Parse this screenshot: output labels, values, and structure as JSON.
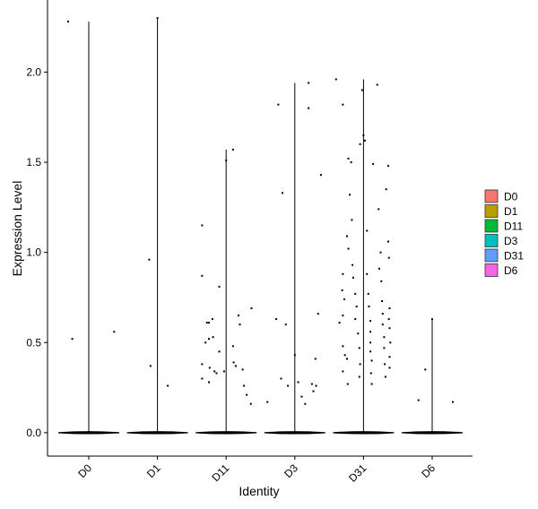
{
  "chart_data": {
    "type": "violin",
    "title": "",
    "xlabel": "Identity",
    "ylabel": "Expression Level",
    "categories": [
      "D0",
      "D1",
      "D11",
      "D3",
      "D31",
      "D6"
    ],
    "ylim": [
      -0.13,
      2.4
    ],
    "yticks": [
      0.0,
      0.5,
      1.0,
      1.5,
      2.0
    ],
    "ytick_labels": [
      "0.0",
      "0.5",
      "1.0",
      "1.5",
      "2.0"
    ],
    "grid": false,
    "legend": {
      "position": "right",
      "entries": [
        {
          "name": "D0",
          "color": "#F8766D"
        },
        {
          "name": "D1",
          "color": "#B79F00"
        },
        {
          "name": "D11",
          "color": "#00BA38"
        },
        {
          "name": "D3",
          "color": "#00BFC4"
        },
        {
          "name": "D31",
          "color": "#619CFF"
        },
        {
          "name": "D6",
          "color": "#F564E3"
        }
      ]
    },
    "series": [
      {
        "name": "D0",
        "max": 2.28,
        "points": [
          [
            -0.3,
            2.28
          ],
          [
            -0.24,
            0.52
          ],
          [
            0.37,
            0.56
          ]
        ]
      },
      {
        "name": "D1",
        "max": 2.3,
        "points": [
          [
            -0.12,
            0.96
          ],
          [
            -0.1,
            0.37
          ],
          [
            0.0,
            2.3
          ],
          [
            0.15,
            0.26
          ]
        ]
      },
      {
        "name": "D11",
        "max": 1.57,
        "points": [
          [
            -0.35,
            1.15
          ],
          [
            -0.35,
            0.87
          ],
          [
            -0.35,
            0.38
          ],
          [
            -0.35,
            0.3
          ],
          [
            -0.3,
            0.5
          ],
          [
            -0.28,
            0.61
          ],
          [
            -0.25,
            0.61
          ],
          [
            -0.25,
            0.52
          ],
          [
            -0.24,
            0.36
          ],
          [
            -0.25,
            0.28
          ],
          [
            -0.2,
            0.63
          ],
          [
            -0.19,
            0.53
          ],
          [
            -0.17,
            0.34
          ],
          [
            -0.14,
            0.33
          ],
          [
            -0.1,
            0.45
          ],
          [
            -0.1,
            0.81
          ],
          [
            0.0,
            1.51
          ],
          [
            -0.03,
            0.34
          ],
          [
            0.1,
            1.57
          ],
          [
            0.1,
            0.48
          ],
          [
            0.11,
            0.39
          ],
          [
            0.14,
            0.37
          ],
          [
            0.18,
            0.65
          ],
          [
            0.2,
            0.6
          ],
          [
            0.24,
            0.35
          ],
          [
            0.26,
            0.26
          ],
          [
            0.3,
            0.21
          ],
          [
            0.37,
            0.69
          ],
          [
            0.36,
            0.16
          ]
        ]
      },
      {
        "name": "D3",
        "max": 1.94,
        "points": [
          [
            -0.4,
            0.17
          ],
          [
            -0.27,
            0.63
          ],
          [
            -0.24,
            1.82
          ],
          [
            -0.18,
            1.33
          ],
          [
            -0.13,
            0.6
          ],
          [
            -0.1,
            0.26
          ],
          [
            -0.2,
            0.3
          ],
          [
            0.0,
            0.43
          ],
          [
            0.05,
            0.28
          ],
          [
            0.1,
            0.2
          ],
          [
            0.15,
            0.16
          ],
          [
            0.2,
            1.94
          ],
          [
            0.2,
            1.8
          ],
          [
            0.25,
            0.27
          ],
          [
            0.27,
            0.23
          ],
          [
            0.3,
            0.41
          ],
          [
            0.31,
            0.26
          ],
          [
            0.34,
            0.66
          ],
          [
            0.38,
            1.43
          ]
        ]
      },
      {
        "name": "D31",
        "max": 1.96,
        "points": [
          [
            -0.4,
            1.96
          ],
          [
            -0.3,
            1.82
          ],
          [
            -0.22,
            1.52
          ],
          [
            -0.18,
            1.5
          ],
          [
            -0.2,
            1.32
          ],
          [
            -0.24,
            1.09
          ],
          [
            -0.22,
            1.02
          ],
          [
            -0.3,
            0.88
          ],
          [
            -0.31,
            0.79
          ],
          [
            -0.28,
            0.74
          ],
          [
            -0.3,
            0.65
          ],
          [
            -0.35,
            0.61
          ],
          [
            -0.3,
            0.48
          ],
          [
            -0.27,
            0.43
          ],
          [
            -0.24,
            0.41
          ],
          [
            -0.3,
            0.34
          ],
          [
            -0.23,
            0.27
          ],
          [
            -0.17,
            1.18
          ],
          [
            -0.16,
            0.93
          ],
          [
            -0.15,
            0.86
          ],
          [
            -0.12,
            0.77
          ],
          [
            -0.1,
            0.7
          ],
          [
            -0.12,
            0.63
          ],
          [
            -0.08,
            0.55
          ],
          [
            -0.06,
            0.47
          ],
          [
            -0.05,
            0.38
          ],
          [
            -0.06,
            0.31
          ],
          [
            -0.05,
            1.6
          ],
          [
            -0.02,
            1.9
          ],
          [
            0.0,
            1.65
          ],
          [
            0.02,
            1.62
          ],
          [
            0.05,
            1.12
          ],
          [
            0.05,
            0.88
          ],
          [
            0.07,
            0.77
          ],
          [
            0.08,
            0.7
          ],
          [
            0.1,
            0.62
          ],
          [
            0.1,
            0.56
          ],
          [
            0.1,
            0.5
          ],
          [
            0.1,
            0.45
          ],
          [
            0.12,
            0.4
          ],
          [
            0.11,
            0.33
          ],
          [
            0.12,
            0.27
          ],
          [
            0.14,
            1.49
          ],
          [
            0.2,
            1.93
          ],
          [
            0.22,
            1.24
          ],
          [
            0.25,
            1.0
          ],
          [
            0.23,
            0.91
          ],
          [
            0.26,
            0.84
          ],
          [
            0.27,
            0.73
          ],
          [
            0.28,
            0.66
          ],
          [
            0.28,
            0.6
          ],
          [
            0.3,
            0.53
          ],
          [
            0.3,
            0.47
          ],
          [
            0.31,
            0.38
          ],
          [
            0.32,
            0.31
          ],
          [
            0.33,
            1.35
          ],
          [
            0.36,
            1.48
          ],
          [
            0.36,
            1.06
          ],
          [
            0.37,
            0.97
          ],
          [
            0.38,
            0.69
          ],
          [
            0.37,
            0.63
          ],
          [
            0.38,
            0.58
          ],
          [
            0.39,
            0.5
          ],
          [
            0.38,
            0.42
          ],
          [
            0.38,
            0.36
          ]
        ]
      },
      {
        "name": "D6",
        "max": 0.63,
        "points": [
          [
            -0.2,
            0.18
          ],
          [
            -0.1,
            0.35
          ],
          [
            0.3,
            0.17
          ],
          [
            0.0,
            0.63
          ]
        ]
      }
    ]
  }
}
